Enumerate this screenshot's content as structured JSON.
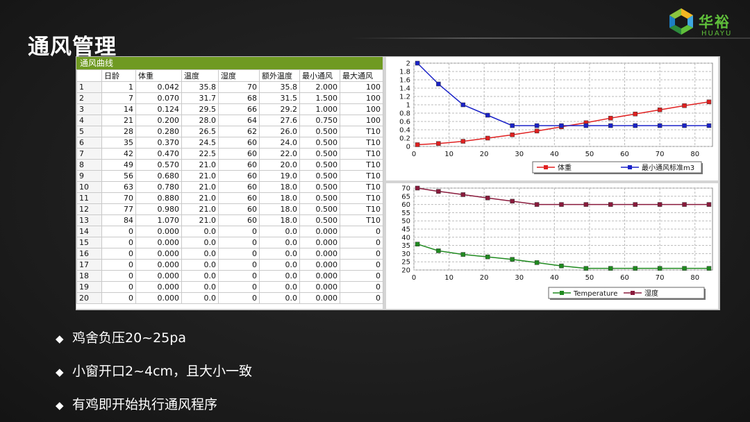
{
  "slide": {
    "title": "通风管理",
    "bullets": [
      "鸡舍负压20~25pa",
      "小窗开口2~4cm，且大小一致",
      "有鸡即开始执行通风程序"
    ]
  },
  "logo": {
    "cn": "华裕",
    "en": "HUAYU"
  },
  "panel": {
    "title": "通风曲线",
    "columns": [
      "",
      "日龄",
      "体重",
      "温度",
      "湿度",
      "额外温度",
      "最小通风",
      "最大通风"
    ],
    "rows": [
      [
        "1",
        "1",
        "0.042",
        "35.8",
        "70",
        "35.8",
        "2.000",
        "100"
      ],
      [
        "2",
        "7",
        "0.070",
        "31.7",
        "68",
        "31.5",
        "1.500",
        "100"
      ],
      [
        "3",
        "14",
        "0.124",
        "29.5",
        "66",
        "29.2",
        "1.000",
        "100"
      ],
      [
        "4",
        "21",
        "0.200",
        "28.0",
        "64",
        "27.6",
        "0.750",
        "100"
      ],
      [
        "5",
        "28",
        "0.280",
        "26.5",
        "62",
        "26.0",
        "0.500",
        "T10"
      ],
      [
        "6",
        "35",
        "0.370",
        "24.5",
        "60",
        "24.0",
        "0.500",
        "T10"
      ],
      [
        "7",
        "42",
        "0.470",
        "22.5",
        "60",
        "22.0",
        "0.500",
        "T10"
      ],
      [
        "8",
        "49",
        "0.570",
        "21.0",
        "60",
        "20.0",
        "0.500",
        "T10"
      ],
      [
        "9",
        "56",
        "0.680",
        "21.0",
        "60",
        "19.0",
        "0.500",
        "T10"
      ],
      [
        "10",
        "63",
        "0.780",
        "21.0",
        "60",
        "18.0",
        "0.500",
        "T10"
      ],
      [
        "11",
        "70",
        "0.880",
        "21.0",
        "60",
        "18.0",
        "0.500",
        "T10"
      ],
      [
        "12",
        "77",
        "0.980",
        "21.0",
        "60",
        "18.0",
        "0.500",
        "T10"
      ],
      [
        "13",
        "84",
        "1.070",
        "21.0",
        "60",
        "18.0",
        "0.500",
        "T10"
      ],
      [
        "14",
        "0",
        "0.000",
        "0.0",
        "0",
        "0.0",
        "0.000",
        "0"
      ],
      [
        "15",
        "0",
        "0.000",
        "0.0",
        "0",
        "0.0",
        "0.000",
        "0"
      ],
      [
        "16",
        "0",
        "0.000",
        "0.0",
        "0",
        "0.0",
        "0.000",
        "0"
      ],
      [
        "17",
        "0",
        "0.000",
        "0.0",
        "0",
        "0.0",
        "0.000",
        "0"
      ],
      [
        "18",
        "0",
        "0.000",
        "0.0",
        "0",
        "0.0",
        "0.000",
        "0"
      ],
      [
        "19",
        "0",
        "0.000",
        "0.0",
        "0",
        "0.0",
        "0.000",
        "0"
      ],
      [
        "20",
        "0",
        "0.000",
        "0.0",
        "0",
        "0.0",
        "0.000",
        "0"
      ]
    ]
  },
  "chart_data": [
    {
      "type": "line",
      "x": [
        1,
        7,
        14,
        21,
        28,
        35,
        42,
        49,
        56,
        63,
        70,
        77,
        84
      ],
      "xlim": [
        0,
        85
      ],
      "ylim": [
        0,
        2
      ],
      "xticks": [
        0,
        10,
        20,
        30,
        40,
        50,
        60,
        70,
        80
      ],
      "yticks": [
        0,
        0.2,
        0.4,
        0.6,
        0.8,
        1,
        1.2,
        1.4,
        1.6,
        1.8,
        2
      ],
      "grid": true,
      "legend_position": "bottom",
      "series": [
        {
          "name": "体重",
          "color": "#e02020",
          "values": [
            0.042,
            0.07,
            0.124,
            0.2,
            0.28,
            0.37,
            0.47,
            0.57,
            0.68,
            0.78,
            0.88,
            0.98,
            1.07
          ]
        },
        {
          "name": "最小通风标准m3",
          "color": "#1a22c8",
          "values": [
            2.0,
            1.5,
            1.0,
            0.75,
            0.5,
            0.5,
            0.5,
            0.5,
            0.5,
            0.5,
            0.5,
            0.5,
            0.5
          ]
        }
      ]
    },
    {
      "type": "line",
      "x": [
        1,
        7,
        14,
        21,
        28,
        35,
        42,
        49,
        56,
        63,
        70,
        77,
        84
      ],
      "xlim": [
        0,
        85
      ],
      "ylim": [
        20,
        70
      ],
      "xticks": [
        0,
        10,
        20,
        30,
        40,
        50,
        60,
        70,
        80
      ],
      "yticks": [
        20,
        25,
        30,
        35,
        40,
        45,
        50,
        55,
        60,
        65,
        70
      ],
      "grid": true,
      "legend_position": "bottom",
      "series": [
        {
          "name": "Temperature",
          "color": "#1f8a1f",
          "values": [
            35.8,
            31.7,
            29.5,
            28.0,
            26.5,
            24.5,
            22.5,
            21.0,
            21.0,
            21.0,
            21.0,
            21.0,
            21.0
          ]
        },
        {
          "name": "湿度",
          "color": "#8a1a3c",
          "values": [
            70,
            68,
            66,
            64,
            62,
            60,
            60,
            60,
            60,
            60,
            60,
            60,
            60
          ]
        }
      ]
    }
  ]
}
